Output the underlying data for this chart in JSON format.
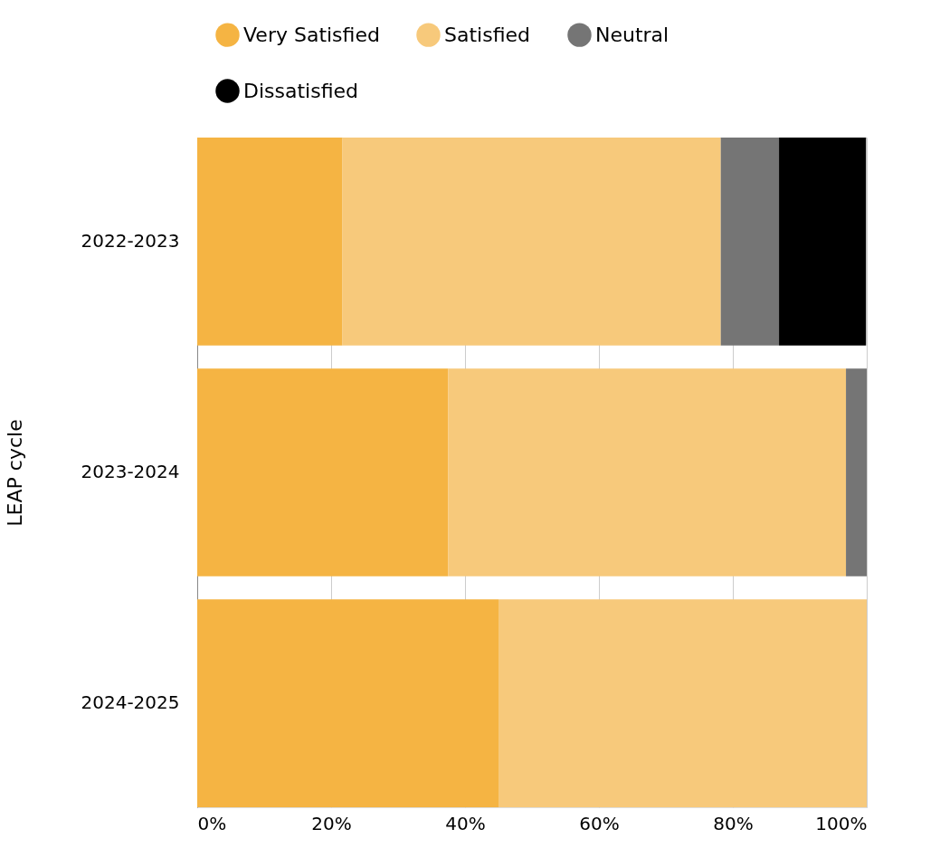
{
  "chart_data": {
    "type": "bar",
    "orientation": "horizontal",
    "stacked": true,
    "ylabel": "LEAP cycle",
    "categories": [
      "2022-2023",
      "2023-2024",
      "2024-2025"
    ],
    "series": [
      {
        "name": "Very Satisfied",
        "color": "#f5b443",
        "values": [
          21.7,
          37.5,
          45
        ]
      },
      {
        "name": "Satisfied",
        "color": "#f7c97b",
        "values": [
          56.5,
          59.4,
          55
        ]
      },
      {
        "name": "Neutral",
        "color": "#757575",
        "values": [
          8.7,
          3.1,
          null
        ]
      },
      {
        "name": "Dissatisfied",
        "color": "#000000",
        "values": [
          13.0,
          null,
          null
        ]
      }
    ],
    "xlim": [
      0,
      100
    ],
    "xticks": [
      {
        "value": 0,
        "label": "0%"
      },
      {
        "value": 20,
        "label": "20%"
      },
      {
        "value": 40,
        "label": "40%"
      },
      {
        "value": 60,
        "label": "60%"
      },
      {
        "value": 80,
        "label": "80%"
      },
      {
        "value": 100,
        "label": "100%"
      }
    ],
    "grid": "x",
    "legend": "top"
  }
}
